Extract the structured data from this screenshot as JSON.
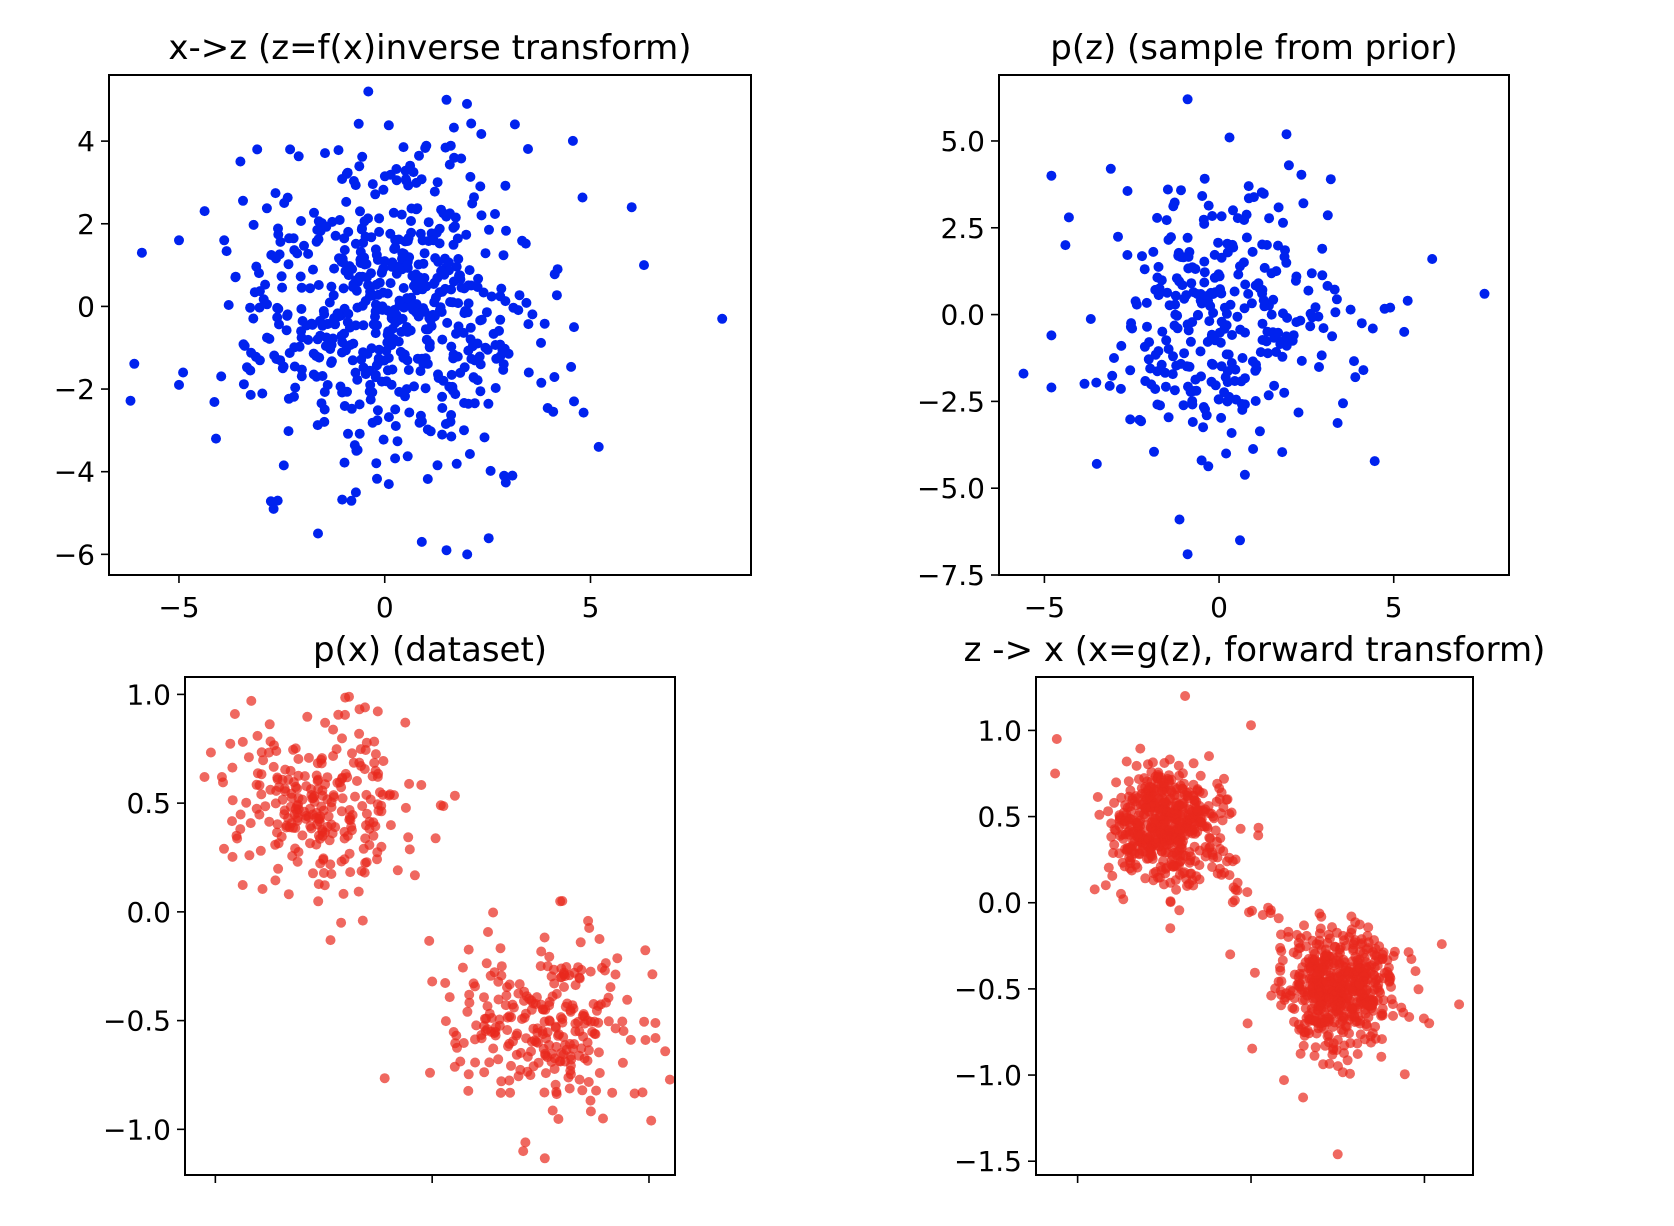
{
  "chart_data": [
    {
      "type": "scatter",
      "title": "x->z (z=f(x)inverse transform)",
      "xlabel": "",
      "ylabel": "",
      "xlim": [
        -6.7,
        8.9
      ],
      "ylim": [
        -6.5,
        5.6
      ],
      "xticks": [
        -5,
        0,
        5
      ],
      "xtick_labels": [
        "−5",
        "0",
        "5"
      ],
      "yticks": [
        -6,
        -4,
        -2,
        0,
        2,
        4
      ],
      "ytick_labels": [
        "−6",
        "−4",
        "−2",
        "0",
        "2",
        "4"
      ],
      "color": "#0022ee",
      "alpha": 1.0,
      "n_points": 600,
      "spread": [
        1.8,
        1.9
      ],
      "points": [
        [
          -5.9,
          1.3
        ],
        [
          -5.0,
          1.6
        ],
        [
          -4.9,
          -1.6
        ],
        [
          -5.0,
          -1.9
        ],
        [
          -4.1,
          -3.2
        ],
        [
          -3.9,
          1.6
        ],
        [
          -2.6,
          -4.7
        ],
        [
          -2.7,
          -4.9
        ],
        [
          -3.1,
          3.8
        ],
        [
          -2.3,
          3.8
        ],
        [
          -0.4,
          5.2
        ],
        [
          1.5,
          5.0
        ],
        [
          2.0,
          4.9
        ],
        [
          2.9,
          -4.1
        ],
        [
          3.5,
          -1.6
        ],
        [
          4.2,
          0.9
        ],
        [
          4.6,
          -0.5
        ],
        [
          4.6,
          -2.3
        ],
        [
          5.2,
          -3.4
        ],
        [
          6.0,
          2.4
        ],
        [
          6.3,
          1.0
        ],
        [
          8.2,
          -0.3
        ],
        [
          0.9,
          -5.7
        ],
        [
          1.5,
          -5.9
        ],
        [
          0.1,
          -4.3
        ],
        [
          -0.7,
          -4.5
        ]
      ],
      "seed": 17
    },
    {
      "type": "scatter",
      "title": "p(z) (sample from prior)",
      "xlabel": "",
      "ylabel": "",
      "xlim": [
        -6.3,
        8.3
      ],
      "ylim": [
        -7.5,
        6.9
      ],
      "xticks": [
        -5,
        0,
        5
      ],
      "xtick_labels": [
        "−5",
        "0",
        "5"
      ],
      "yticks": [
        -7.5,
        -5.0,
        -2.5,
        0.0,
        2.5,
        5.0
      ],
      "ytick_labels": [
        "−7.5",
        "−5.0",
        "−2.5",
        "0.0",
        "2.5",
        "5.0"
      ],
      "color": "#0022ee",
      "alpha": 1.0,
      "n_points": 300,
      "spread": [
        1.7,
        1.8
      ],
      "points": [
        [
          -5.6,
          -1.7
        ],
        [
          -4.8,
          -0.6
        ],
        [
          -4.8,
          -2.1
        ],
        [
          -4.8,
          4.0
        ],
        [
          -4.4,
          2.0
        ],
        [
          -4.3,
          2.8
        ],
        [
          -3.5,
          -4.3
        ],
        [
          -3.1,
          4.2
        ],
        [
          -0.9,
          6.2
        ],
        [
          0.3,
          5.1
        ],
        [
          0.6,
          -6.5
        ],
        [
          -0.9,
          -6.9
        ],
        [
          2.0,
          4.3
        ],
        [
          3.2,
          3.9
        ],
        [
          3.9,
          -1.8
        ],
        [
          4.4,
          -0.4
        ],
        [
          4.9,
          0.2
        ],
        [
          5.3,
          -0.5
        ],
        [
          5.4,
          0.4
        ],
        [
          6.1,
          1.6
        ],
        [
          7.6,
          0.6
        ],
        [
          -0.5,
          -4.2
        ],
        [
          0.2,
          -4.0
        ]
      ],
      "seed": 42
    },
    {
      "type": "scatter",
      "title": "p(x) (dataset)",
      "xlabel": "",
      "ylabel": "",
      "xlim": [
        -0.14,
        2.12
      ],
      "ylim": [
        -1.21,
        1.08
      ],
      "xticks": [
        0,
        1,
        2
      ],
      "xtick_labels": [
        "",
        "",
        ""
      ],
      "yticks": [
        -1.0,
        -0.5,
        0.0,
        0.5,
        1.0
      ],
      "ytick_labels": [
        "−1.0",
        "−0.5",
        "0.0",
        "0.5",
        "1.0"
      ],
      "color": "#e8281c",
      "alpha": 0.7,
      "clusters": [
        {
          "center": [
            0.5,
            0.5
          ],
          "n": 260,
          "spread": [
            0.2,
            0.2
          ]
        },
        {
          "center": [
            1.5,
            -0.5
          ],
          "n": 260,
          "spread": [
            0.2,
            0.2
          ]
        }
      ],
      "points": [
        [
          -0.05,
          0.62
        ],
        [
          0.09,
          0.91
        ],
        [
          0.04,
          0.29
        ],
        [
          0.69,
          0.94
        ],
        [
          1.04,
          0.49
        ],
        [
          0.58,
          -0.05
        ],
        [
          0.68,
          -0.04
        ],
        [
          0.03,
          0.62
        ],
        [
          1.42,
          -1.1
        ],
        [
          1.43,
          -1.06
        ],
        [
          2.01,
          -0.96
        ],
        [
          2.03,
          -0.58
        ],
        [
          0.99,
          -0.74
        ],
        [
          1.6,
          0.05
        ],
        [
          1.0,
          -0.32
        ],
        [
          1.97,
          -0.83
        ]
      ],
      "seed": 7
    },
    {
      "type": "scatter",
      "title": "z -> x (x=g(z), forward transform)",
      "xlabel": "",
      "ylabel": "",
      "xlim": [
        -0.24,
        2.28
      ],
      "ylim": [
        -1.58,
        1.31
      ],
      "xticks": [
        0,
        1,
        2
      ],
      "xtick_labels": [
        "",
        "",
        ""
      ],
      "yticks": [
        -1.5,
        -1.0,
        -0.5,
        0.0,
        0.5,
        1.0
      ],
      "ytick_labels": [
        "−1.5",
        "−1.0",
        "−0.5",
        "0.0",
        "0.5",
        "1.0"
      ],
      "color": "#e8281c",
      "alpha": 0.7,
      "clusters": [
        {
          "center": [
            0.5,
            0.45
          ],
          "n": 520,
          "spread": [
            0.17,
            0.17
          ]
        },
        {
          "center": [
            1.5,
            -0.5
          ],
          "n": 520,
          "spread": [
            0.17,
            0.17
          ]
        }
      ],
      "bridge": {
        "from": [
          0.8,
          0.2
        ],
        "to": [
          1.2,
          -0.2
        ],
        "n": 20
      },
      "points": [
        [
          0.62,
          1.2
        ],
        [
          -0.12,
          0.95
        ],
        [
          1.0,
          1.03
        ],
        [
          -0.13,
          0.75
        ],
        [
          1.5,
          -1.46
        ],
        [
          2.1,
          -0.24
        ],
        [
          2.2,
          -0.59
        ],
        [
          0.98,
          -0.7
        ],
        [
          1.3,
          -1.13
        ],
        [
          0.88,
          -0.3
        ]
      ],
      "seed": 99
    }
  ]
}
